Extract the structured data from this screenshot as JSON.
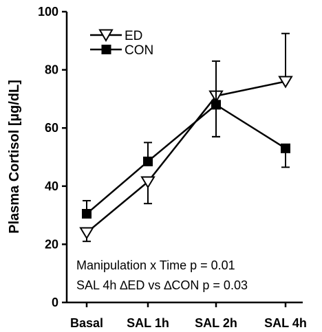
{
  "chart_data": {
    "type": "line",
    "ylabel": "Plasma Cortisol [µg/dL]",
    "xlabel": "",
    "ylim": [
      0,
      100
    ],
    "yticks": [
      0,
      20,
      40,
      60,
      80,
      100
    ],
    "categories": [
      "Basal",
      "SAL 1h",
      "SAL 2h",
      "SAL 4h"
    ],
    "series": [
      {
        "name": "ED",
        "marker": "open-triangle-down",
        "values": [
          24,
          41.5,
          71,
          76
        ],
        "error_lower": [
          21,
          34,
          57,
          76
        ],
        "error_upper": [
          24,
          41.5,
          71,
          92.5
        ]
      },
      {
        "name": "CON",
        "marker": "filled-square",
        "values": [
          30.5,
          48.5,
          68,
          53
        ],
        "error_lower": [
          30.5,
          48.5,
          57,
          46.5
        ],
        "error_upper": [
          35,
          55,
          83,
          53
        ]
      }
    ],
    "legend_position": "top-left",
    "annotations": [
      "Manipulation x Time p = 0.01",
      "SAL 4h ∆ED vs ∆CON p = 0.03"
    ]
  }
}
